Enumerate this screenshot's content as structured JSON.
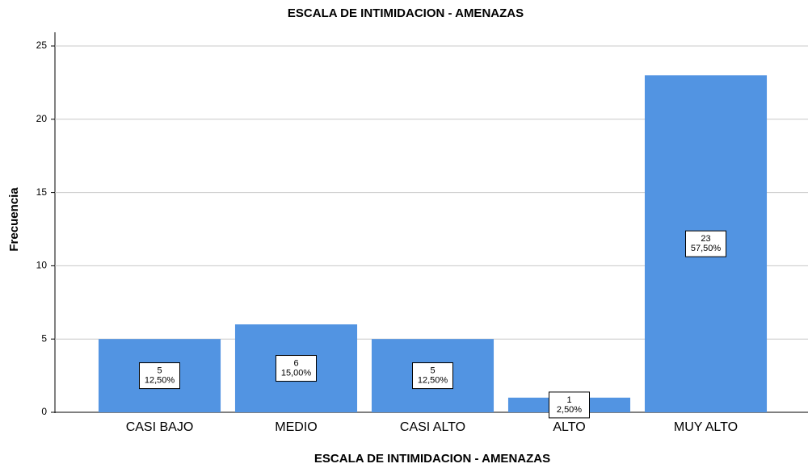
{
  "chart_data": {
    "type": "bar",
    "title": "ESCALA DE INTIMIDACION - AMENAZAS",
    "x_label": "ESCALA DE INTIMIDACION - AMENAZAS",
    "y_label": "Frecuencia",
    "categories": [
      "CASI BAJO",
      "MEDIO",
      "CASI ALTO",
      "ALTO",
      "MUY ALTO"
    ],
    "values": [
      5,
      6,
      5,
      1,
      23
    ],
    "percent_labels": [
      "12,50%",
      "15,00%",
      "12,50%",
      "2,50%",
      "57,50%"
    ],
    "color": "#5294e2",
    "ylim": [
      0,
      25
    ],
    "yticks": [
      0,
      5,
      10,
      15,
      20,
      25
    ],
    "grid": true
  }
}
